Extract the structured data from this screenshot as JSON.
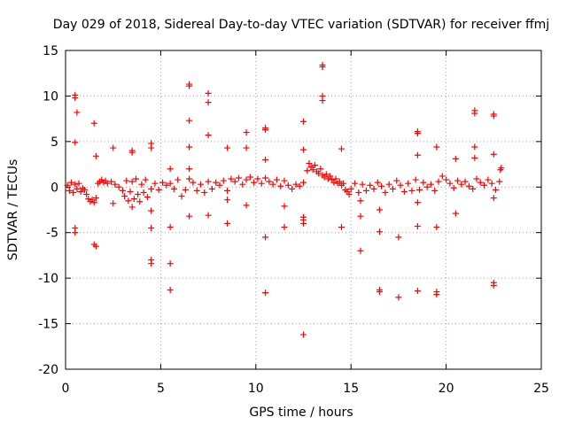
{
  "chart_data": {
    "type": "scatter",
    "title": "Day 029 of 2018, Sidereal Day-to-day VTEC variation (SDTVAR) for receiver ffmj",
    "xlabel": "GPS time / hours",
    "ylabel": "SDTVAR / TECUs",
    "xlim": [
      0,
      25
    ],
    "ylim": [
      -20,
      15
    ],
    "xticks": [
      0,
      5,
      10,
      15,
      20,
      25
    ],
    "yticks": [
      -20,
      -15,
      -10,
      -5,
      0,
      5,
      10,
      15
    ],
    "xtick_labels": [
      "0",
      "5",
      "10",
      "15",
      "20",
      "25"
    ],
    "ytick_labels": [
      "-20",
      "-15",
      "-10",
      "-5",
      "0",
      "5",
      "10",
      "15"
    ],
    "grid": true,
    "marker": "+",
    "color": "#ff0000",
    "series": [
      {
        "name": "SDTVAR",
        "points": [
          [
            0.1,
            0.2
          ],
          [
            0.2,
            -0.4
          ],
          [
            0.3,
            0.5
          ],
          [
            0.4,
            -0.6
          ],
          [
            0.5,
            0.3
          ],
          [
            0.6,
            -0.2
          ],
          [
            0.7,
            0.4
          ],
          [
            0.8,
            -0.5
          ],
          [
            0.9,
            -0.1
          ],
          [
            1.0,
            -0.3
          ],
          [
            1.1,
            -0.8
          ],
          [
            1.2,
            -1.3
          ],
          [
            1.3,
            -1.6
          ],
          [
            1.4,
            -1.4
          ],
          [
            1.5,
            -1.7
          ],
          [
            1.6,
            -1.2
          ],
          [
            1.7,
            0.4
          ],
          [
            1.8,
            0.6
          ],
          [
            1.9,
            0.8
          ],
          [
            2.0,
            0.5
          ],
          [
            2.1,
            0.7
          ],
          [
            2.2,
            0.4
          ],
          [
            2.4,
            0.6
          ],
          [
            2.6,
            0.3
          ],
          [
            2.8,
            0.0
          ],
          [
            3.0,
            -0.4
          ],
          [
            3.1,
            -1.0
          ],
          [
            3.2,
            0.7
          ],
          [
            3.3,
            -1.5
          ],
          [
            3.4,
            -0.5
          ],
          [
            3.5,
            0.6
          ],
          [
            3.6,
            -1.3
          ],
          [
            3.7,
            0.9
          ],
          [
            3.8,
            -0.8
          ],
          [
            3.9,
            -1.6
          ],
          [
            4.0,
            0.3
          ],
          [
            4.1,
            -0.6
          ],
          [
            4.2,
            0.8
          ],
          [
            4.3,
            -1.1
          ],
          [
            4.5,
            -0.2
          ],
          [
            4.7,
            0.4
          ],
          [
            4.9,
            -0.3
          ],
          [
            5.1,
            0.5
          ],
          [
            5.3,
            0.2
          ],
          [
            5.5,
            0.4
          ],
          [
            5.7,
            -0.2
          ],
          [
            5.9,
            0.8
          ],
          [
            6.1,
            -1.0
          ],
          [
            6.3,
            -0.3
          ],
          [
            6.5,
            0.9
          ],
          [
            6.7,
            0.5
          ],
          [
            6.9,
            -0.4
          ],
          [
            7.1,
            0.3
          ],
          [
            7.3,
            -0.6
          ],
          [
            7.5,
            0.6
          ],
          [
            7.7,
            -0.2
          ],
          [
            7.9,
            0.5
          ],
          [
            8.1,
            0.2
          ],
          [
            8.3,
            0.7
          ],
          [
            8.5,
            -0.4
          ],
          [
            8.7,
            0.9
          ],
          [
            8.9,
            0.6
          ],
          [
            9.1,
            1.0
          ],
          [
            9.3,
            0.3
          ],
          [
            9.5,
            0.8
          ],
          [
            9.7,
            1.1
          ],
          [
            9.9,
            0.5
          ],
          [
            10.1,
            0.9
          ],
          [
            10.3,
            0.4
          ],
          [
            10.5,
            1.0
          ],
          [
            10.7,
            0.6
          ],
          [
            10.9,
            0.3
          ],
          [
            11.1,
            0.8
          ],
          [
            11.3,
            0.1
          ],
          [
            11.5,
            0.7
          ],
          [
            11.7,
            0.2
          ],
          [
            11.9,
            -0.2
          ],
          [
            12.1,
            0.3
          ],
          [
            12.3,
            0.1
          ],
          [
            12.5,
            0.5
          ],
          [
            12.7,
            1.8
          ],
          [
            12.8,
            2.6
          ],
          [
            12.9,
            2.2
          ],
          [
            13.0,
            1.9
          ],
          [
            13.1,
            2.4
          ],
          [
            13.2,
            1.7
          ],
          [
            13.3,
            1.5
          ],
          [
            13.4,
            2.0
          ],
          [
            13.5,
            1.3
          ],
          [
            13.6,
            1.1
          ],
          [
            13.7,
            1.4
          ],
          [
            13.8,
            0.9
          ],
          [
            13.9,
            1.2
          ],
          [
            14.0,
            0.8
          ],
          [
            14.1,
            0.5
          ],
          [
            14.2,
            0.9
          ],
          [
            14.3,
            0.4
          ],
          [
            14.4,
            0.6
          ],
          [
            14.5,
            0.2
          ],
          [
            14.6,
            0.4
          ],
          [
            14.7,
            -0.3
          ],
          [
            14.8,
            -0.5
          ],
          [
            14.9,
            -0.8
          ],
          [
            15.0,
            -0.2
          ],
          [
            15.2,
            0.4
          ],
          [
            15.4,
            -0.6
          ],
          [
            15.6,
            0.3
          ],
          [
            15.8,
            -0.4
          ],
          [
            16.0,
            0.2
          ],
          [
            16.2,
            -0.2
          ],
          [
            16.4,
            0.5
          ],
          [
            16.6,
            0.1
          ],
          [
            16.8,
            -0.6
          ],
          [
            17.0,
            0.3
          ],
          [
            17.2,
            -0.2
          ],
          [
            17.4,
            0.7
          ],
          [
            17.6,
            0.2
          ],
          [
            17.8,
            -0.5
          ],
          [
            18.0,
            0.4
          ],
          [
            18.2,
            -0.4
          ],
          [
            18.4,
            0.8
          ],
          [
            18.6,
            -0.3
          ],
          [
            18.8,
            0.5
          ],
          [
            19.0,
            0.0
          ],
          [
            19.2,
            0.3
          ],
          [
            19.4,
            -0.4
          ],
          [
            19.6,
            0.6
          ],
          [
            19.8,
            1.2
          ],
          [
            20.0,
            0.8
          ],
          [
            20.2,
            0.4
          ],
          [
            20.4,
            -0.1
          ],
          [
            20.6,
            0.7
          ],
          [
            20.8,
            0.3
          ],
          [
            21.0,
            0.6
          ],
          [
            21.2,
            0.1
          ],
          [
            21.4,
            -0.2
          ],
          [
            21.6,
            0.9
          ],
          [
            21.8,
            0.5
          ],
          [
            22.0,
            0.2
          ],
          [
            22.2,
            0.8
          ],
          [
            22.4,
            0.4
          ],
          [
            22.6,
            -0.3
          ],
          [
            22.8,
            0.6
          ],
          [
            22.85,
            1.9
          ],
          [
            22.9,
            2.1
          ],
          [
            0.5,
            10.1
          ],
          [
            0.5,
            9.8
          ],
          [
            0.6,
            8.2
          ],
          [
            0.5,
            4.9
          ],
          [
            0.5,
            -4.5
          ],
          [
            0.5,
            -5.0
          ],
          [
            1.5,
            7.0
          ],
          [
            1.6,
            3.4
          ],
          [
            1.5,
            -6.3
          ],
          [
            1.6,
            -6.5
          ],
          [
            2.5,
            4.3
          ],
          [
            2.5,
            -1.8
          ],
          [
            3.5,
            4.0
          ],
          [
            3.5,
            3.8
          ],
          [
            3.5,
            -2.2
          ],
          [
            4.5,
            4.8
          ],
          [
            4.5,
            4.3
          ],
          [
            4.5,
            -2.6
          ],
          [
            4.5,
            -4.5
          ],
          [
            4.5,
            -8.0
          ],
          [
            4.5,
            -8.4
          ],
          [
            5.5,
            2.0
          ],
          [
            5.5,
            -4.4
          ],
          [
            5.5,
            -8.4
          ],
          [
            5.5,
            -11.3
          ],
          [
            6.5,
            11.1
          ],
          [
            6.5,
            11.3
          ],
          [
            6.5,
            7.3
          ],
          [
            6.5,
            4.4
          ],
          [
            6.5,
            2.0
          ],
          [
            6.5,
            -3.2
          ],
          [
            7.5,
            10.3
          ],
          [
            7.5,
            9.3
          ],
          [
            7.5,
            5.7
          ],
          [
            7.5,
            -3.1
          ],
          [
            8.5,
            4.3
          ],
          [
            8.5,
            -1.4
          ],
          [
            8.5,
            -4.0
          ],
          [
            9.5,
            6.0
          ],
          [
            9.5,
            4.3
          ],
          [
            9.5,
            -2.0
          ],
          [
            10.5,
            6.5
          ],
          [
            10.5,
            6.3
          ],
          [
            10.5,
            3.0
          ],
          [
            10.5,
            -5.5
          ],
          [
            10.5,
            -11.6
          ],
          [
            11.5,
            -2.1
          ],
          [
            11.5,
            -4.4
          ],
          [
            12.5,
            7.2
          ],
          [
            12.5,
            4.1
          ],
          [
            12.5,
            -3.3
          ],
          [
            12.5,
            -3.6
          ],
          [
            12.5,
            -4.0
          ],
          [
            12.5,
            -16.2
          ],
          [
            13.5,
            13.4
          ],
          [
            13.5,
            13.2
          ],
          [
            13.5,
            10.0
          ],
          [
            13.5,
            9.5
          ],
          [
            14.5,
            4.2
          ],
          [
            14.5,
            -4.4
          ],
          [
            15.5,
            -1.5
          ],
          [
            15.5,
            -3.2
          ],
          [
            15.5,
            -7.0
          ],
          [
            16.5,
            -2.5
          ],
          [
            16.5,
            -4.9
          ],
          [
            16.5,
            -11.3
          ],
          [
            16.5,
            -11.5
          ],
          [
            17.5,
            -5.5
          ],
          [
            17.5,
            -12.1
          ],
          [
            18.5,
            6.1
          ],
          [
            18.5,
            5.9
          ],
          [
            18.5,
            3.5
          ],
          [
            18.5,
            -1.7
          ],
          [
            18.5,
            -4.3
          ],
          [
            18.5,
            -11.4
          ],
          [
            19.5,
            4.4
          ],
          [
            19.5,
            -4.4
          ],
          [
            19.5,
            -11.5
          ],
          [
            19.5,
            -11.8
          ],
          [
            20.5,
            3.1
          ],
          [
            20.5,
            -2.9
          ],
          [
            21.5,
            8.4
          ],
          [
            21.5,
            8.1
          ],
          [
            21.5,
            4.4
          ],
          [
            21.5,
            3.2
          ],
          [
            22.5,
            8.0
          ],
          [
            22.5,
            7.8
          ],
          [
            22.5,
            3.6
          ],
          [
            22.5,
            -1.2
          ],
          [
            22.5,
            -10.5
          ],
          [
            22.5,
            -10.8
          ]
        ]
      }
    ]
  }
}
